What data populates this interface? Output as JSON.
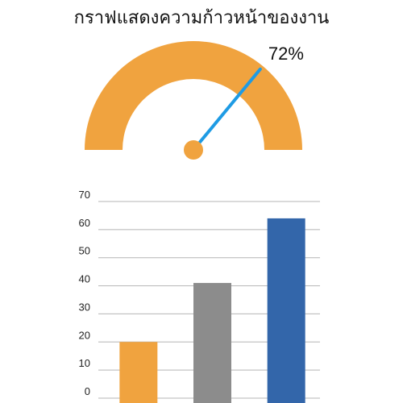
{
  "title": "กราฟแสดงความก้าวหน้าของงาน",
  "colors": {
    "gauge_arc": "#F0A33F",
    "needle": "#1E9BE4",
    "hub": "#F0A33F",
    "grid": "#B5B5B5"
  },
  "chart_data": [
    {
      "type": "gauge",
      "value": 72,
      "min": 0,
      "max": 100,
      "value_label": "72%"
    },
    {
      "type": "bar",
      "categories": [
        "",
        "",
        ""
      ],
      "values": [
        20,
        41,
        64
      ],
      "colors": [
        "#F0A33F",
        "#8C8C8C",
        "#3366AA"
      ],
      "yticks": [
        0,
        10,
        20,
        30,
        40,
        50,
        60,
        70
      ],
      "ylim": [
        0,
        70
      ],
      "grid": true
    }
  ]
}
